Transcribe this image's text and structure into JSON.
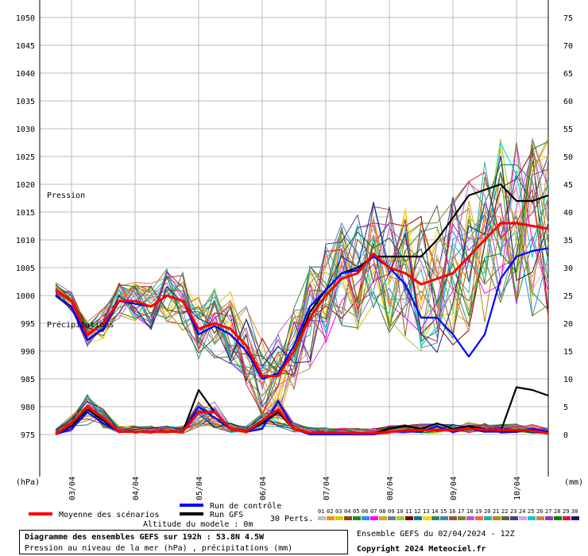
{
  "chart_data": {
    "type": "line",
    "labels": {
      "pressure": "Pression",
      "precip": "Précipitations",
      "left_unit": "(hPa)",
      "right_unit": "(mm)"
    },
    "left_axis": {
      "range": [
        975,
        1050
      ],
      "ticks": [
        975,
        980,
        985,
        990,
        995,
        1000,
        1005,
        1010,
        1015,
        1020,
        1025,
        1030,
        1035,
        1040,
        1045,
        1050
      ]
    },
    "right_axis": {
      "range": [
        0,
        75
      ],
      "ticks": [
        0,
        5,
        10,
        15,
        20,
        25,
        30,
        35,
        40,
        45,
        50,
        55,
        60,
        65,
        70,
        75
      ]
    },
    "x_labels": [
      "03/04",
      "04/04",
      "05/04",
      "06/04",
      "07/04",
      "08/04",
      "09/04",
      "10/04"
    ],
    "grid": true,
    "steps": [
      6,
      12,
      18,
      24,
      30,
      36,
      42,
      48,
      54,
      60,
      66,
      72,
      78,
      84,
      90,
      96,
      102,
      108,
      114,
      120,
      126,
      132,
      138,
      144,
      150,
      156,
      162,
      168,
      174,
      180,
      186,
      192
    ],
    "series": [
      {
        "name": "Moyenne des scénarios",
        "color": "#ff0000",
        "role": "mean",
        "pressure": [
          1001,
          999,
          993,
          995,
          999,
          999,
          998,
          1000,
          999,
          994,
          995,
          994,
          991,
          985.5,
          985.5,
          990,
          996,
          1000,
          1003,
          1004,
          1007.5,
          1005,
          1004,
          1002,
          1003,
          1004,
          1007,
          1010,
          1013,
          1013,
          1012.5,
          1012
        ],
        "precip": [
          0,
          2,
          5,
          3,
          0.5,
          0.5,
          0.5,
          0.5,
          0.5,
          4,
          4,
          1,
          0.5,
          2.5,
          4.5,
          1,
          0.3,
          0.3,
          0.3,
          0.2,
          0.2,
          0.5,
          0.7,
          0.8,
          0.8,
          0.8,
          1,
          0.9,
          0.8,
          0.8,
          0.7,
          0.2
        ]
      },
      {
        "name": "Run de contrôle",
        "color": "#0000ff",
        "role": "control",
        "pressure": [
          1000,
          998,
          992,
          994,
          999,
          998.5,
          998,
          1000,
          999,
          993,
          994.5,
          993,
          990,
          985,
          986,
          991,
          998,
          1001,
          1004,
          1004.5,
          1007,
          1005,
          1002,
          996,
          996,
          993,
          989,
          993,
          1003,
          1007,
          1008,
          1008.5
        ],
        "precip": [
          0,
          1,
          4,
          2,
          0.5,
          0.5,
          0.5,
          0.5,
          0.5,
          5,
          3,
          1,
          0.5,
          1,
          6,
          1,
          0,
          0,
          0,
          0,
          0,
          0.5,
          0.5,
          0.5,
          1.5,
          0.5,
          1,
          0.5,
          0.5,
          0.5,
          1,
          0.5
        ]
      },
      {
        "name": "Run GFS",
        "color": "#000000",
        "role": "gfs",
        "pressure": [
          1000,
          998,
          992,
          994,
          999,
          999,
          998,
          1000,
          999,
          994,
          995,
          994,
          991,
          985,
          986,
          990,
          997,
          1001,
          1004,
          1005,
          1007,
          1007,
          1007,
          1007,
          1010,
          1014,
          1018,
          1019,
          1020,
          1017,
          1017,
          1018
        ],
        "precip": [
          0,
          1.5,
          4.5,
          2.5,
          0.5,
          0.5,
          0.5,
          0.5,
          0.5,
          8,
          4,
          1,
          0.5,
          2,
          4,
          1,
          0.2,
          0.2,
          0.2,
          0.2,
          0.2,
          1,
          1.5,
          1,
          2,
          1,
          1.5,
          1,
          0.5,
          8.5,
          8,
          7
        ]
      }
    ],
    "legend": {
      "scenario_count": "30 Perts.",
      "placement": "bottom"
    },
    "perturbations": [
      "01",
      "02",
      "03",
      "04",
      "05",
      "06",
      "07",
      "08",
      "09",
      "10",
      "11",
      "12",
      "13",
      "14",
      "15",
      "16",
      "17",
      "18",
      "19",
      "20",
      "21",
      "22",
      "23",
      "24",
      "25",
      "26",
      "27",
      "28",
      "29",
      "30"
    ],
    "perturbation_colors": [
      "#bebebe",
      "#ff8c00",
      "#cccc00",
      "#8b4513",
      "#228b22",
      "#1e90ff",
      "#ff00ff",
      "#daa520",
      "#708090",
      "#9acd32",
      "#800000",
      "#008080",
      "#ffd700",
      "#2e8b57",
      "#4682b4",
      "#a0522d",
      "#6b8e23",
      "#ba55d3",
      "#ff6347",
      "#20b2aa",
      "#b8860b",
      "#556b2f",
      "#483d8b",
      "#dda0dd",
      "#00ced1",
      "#cd853f",
      "#9932cc",
      "#008000",
      "#dc143c",
      "#191970"
    ]
  },
  "model_altitude": "Altitude du modele : 0m",
  "info": {
    "title": "Diagramme des ensembles GEFS sur 192h : 53.8N 4.5W",
    "subtitle": "Pression au niveau de la mer (hPa) , précipitations (mm)"
  },
  "footer": {
    "run_info": "Ensemble GEFS du 02/04/2024 - 12Z",
    "copyright": "Copyright 2024 Meteociel.fr"
  }
}
